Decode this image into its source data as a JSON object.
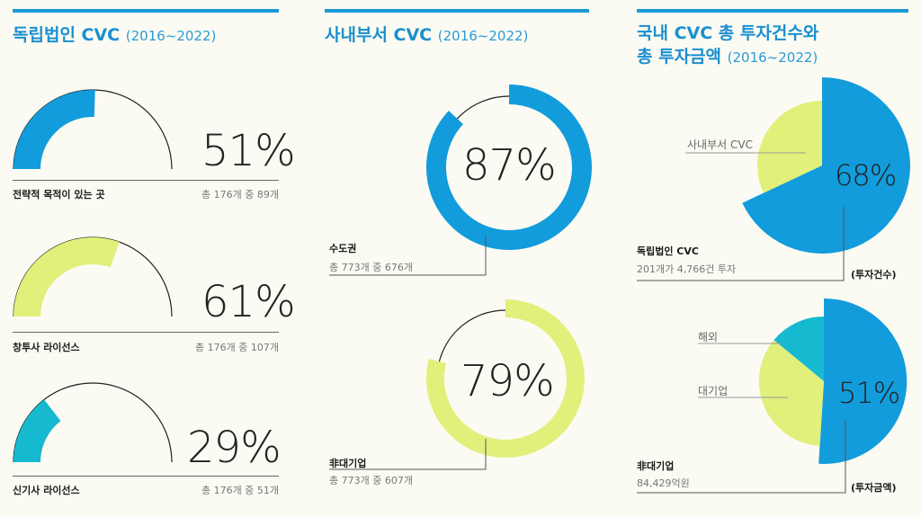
{
  "colors": {
    "blue": "#129cdc",
    "lime": "#e0f07b",
    "cyan": "#15b9d0",
    "title": "#1a8fd0"
  },
  "col1": {
    "title": "독립법인 CVC",
    "years": "(2016~2022)",
    "items": [
      {
        "pct_label": "51%",
        "label": "전략적 목적이 있는 곳",
        "stat": "총 176개 중 89개"
      },
      {
        "pct_label": "61%",
        "label": "창투사 라이선스",
        "stat": "총 176개 중 107개"
      },
      {
        "pct_label": "29%",
        "label": "신기사 라이선스",
        "stat": "총 176개 중 51개"
      }
    ]
  },
  "col2": {
    "title": "사내부서 CVC",
    "years": "(2016~2022)",
    "items": [
      {
        "pct_label": "87%",
        "label": "수도권",
        "stat": "총 773개 중 676개"
      },
      {
        "pct_label": "79%",
        "label": "非대기업",
        "stat": "총 773개 중 607개"
      }
    ]
  },
  "col3": {
    "title_line1": "국내 CVC 총 투자건수와",
    "title_line2": "총 투자금액",
    "years": "(2016~2022)",
    "pie1": {
      "pct_label": "68%",
      "other_label": "사내부서 CVC",
      "label": "독립법인 CVC",
      "stat": "201개가 4,766건 투자",
      "tag": "(투자건수)"
    },
    "pie2": {
      "pct_label": "51%",
      "label_a": "해외",
      "label_b": "대기업",
      "label": "非대기업",
      "stat": "84,429억원",
      "tag": "(투자금액)"
    }
  },
  "chart_data": [
    {
      "type": "gauge",
      "title": "독립법인 CVC",
      "series": [
        {
          "name": "전략적 목적이 있는 곳",
          "value": 51,
          "count": 89,
          "total": 176
        },
        {
          "name": "창투사 라이선스",
          "value": 61,
          "count": 107,
          "total": 176
        },
        {
          "name": "신기사 라이선스",
          "value": 29,
          "count": 51,
          "total": 176
        }
      ]
    },
    {
      "type": "donut",
      "title": "사내부서 CVC",
      "series": [
        {
          "name": "수도권",
          "value": 87,
          "count": 676,
          "total": 773
        },
        {
          "name": "非대기업",
          "value": 79,
          "count": 607,
          "total": 773
        }
      ]
    },
    {
      "type": "pie",
      "title": "투자건수",
      "categories": [
        "독립법인 CVC",
        "사내부서 CVC"
      ],
      "values": [
        68,
        32
      ]
    },
    {
      "type": "pie",
      "title": "투자금액",
      "categories": [
        "非대기업",
        "대기업",
        "해외"
      ],
      "values": [
        51,
        35,
        14
      ]
    }
  ]
}
